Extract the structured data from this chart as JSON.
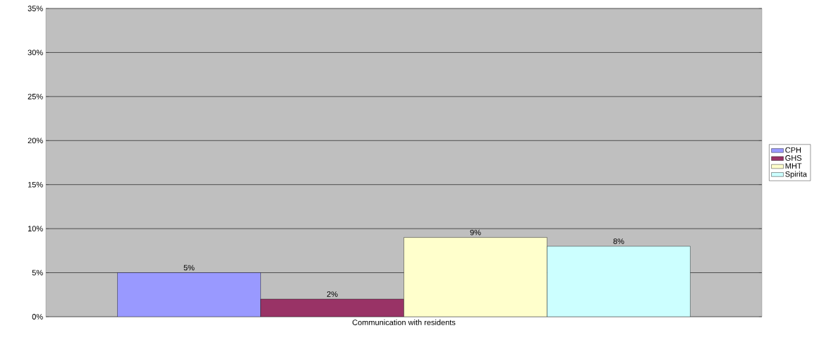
{
  "chart_data": {
    "type": "bar",
    "categories": [
      "Communication with residents"
    ],
    "series": [
      {
        "name": "CPH",
        "color": "#9999ff",
        "values": [
          5
        ],
        "value_labels": [
          "5%"
        ]
      },
      {
        "name": "GHS",
        "color": "#993366",
        "values": [
          2
        ],
        "value_labels": [
          "2%"
        ]
      },
      {
        "name": "MHT",
        "color": "#ffffcc",
        "values": [
          9
        ],
        "value_labels": [
          "9%"
        ]
      },
      {
        "name": "Spirita",
        "color": "#ccffff",
        "values": [
          8
        ],
        "value_labels": [
          "8%"
        ]
      }
    ],
    "ylim": [
      0,
      35
    ],
    "yticks": [
      {
        "value": 0,
        "label": "0%"
      },
      {
        "value": 5,
        "label": "5%"
      },
      {
        "value": 10,
        "label": "10%"
      },
      {
        "value": 15,
        "label": "15%"
      },
      {
        "value": 20,
        "label": "20%"
      },
      {
        "value": 25,
        "label": "25%"
      },
      {
        "value": 30,
        "label": "30%"
      },
      {
        "value": 35,
        "label": "35%"
      }
    ],
    "grid": "y",
    "legend": "right"
  }
}
